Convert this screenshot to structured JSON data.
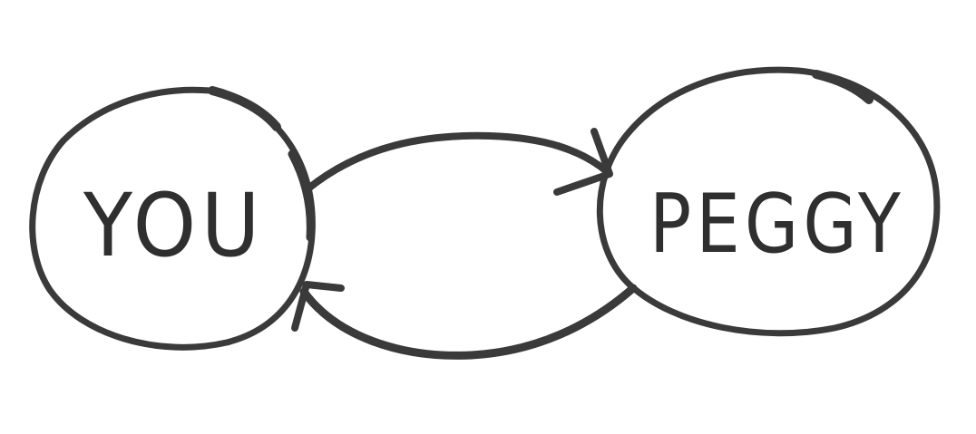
{
  "diagram": {
    "nodes": [
      {
        "id": "you",
        "label": "YOU"
      },
      {
        "id": "peggy",
        "label": "PEGGY"
      }
    ],
    "edges": [
      {
        "from": "you",
        "to": "peggy"
      },
      {
        "from": "peggy",
        "to": "you"
      }
    ],
    "colors": {
      "ink": "#3a3a3a",
      "background": "#ffffff"
    }
  }
}
